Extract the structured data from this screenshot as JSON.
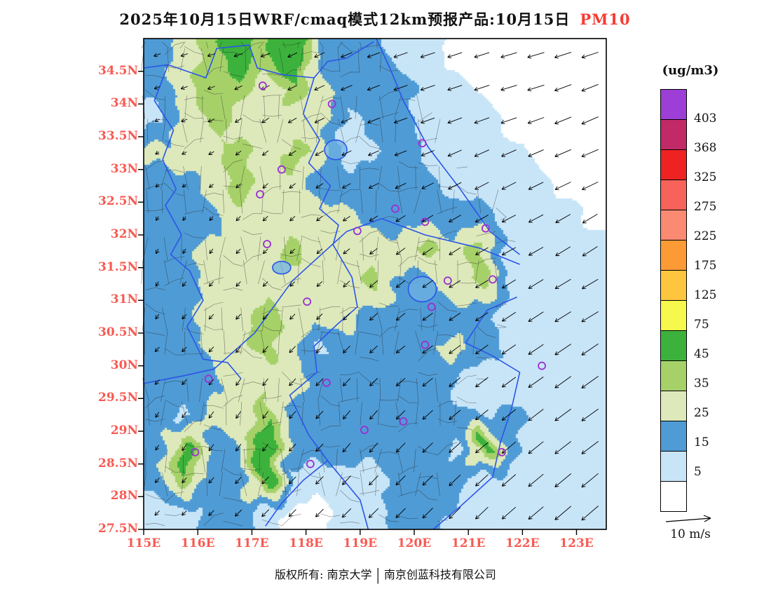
{
  "title": {
    "main": "2025年10月15日WRF/cmaq模式12km预报产品:10月15日",
    "pollutant": "PM10"
  },
  "footer": {
    "left": "版权所有: 南京大学",
    "divider": "|",
    "right": "南京创蓝科技有限公司"
  },
  "colors": {
    "axis_label": "#f85a52",
    "title_red": "#f83b32",
    "province_line": "#2b55e8",
    "county_line": "#222222",
    "marker": "#9a30d0",
    "frame": "#000000"
  },
  "axes": {
    "lat_ticks": [
      "34.5N",
      "34N",
      "33.5N",
      "33N",
      "32.5N",
      "32N",
      "31.5N",
      "31N",
      "30.5N",
      "30N",
      "29.5N",
      "29N",
      "28.5N",
      "28N",
      "27.5N"
    ],
    "lat_values": [
      34.5,
      34,
      33.5,
      33,
      32.5,
      32,
      31.5,
      31,
      30.5,
      30,
      29.5,
      29,
      28.5,
      28,
      27.5
    ],
    "lon_ticks": [
      "115E",
      "116E",
      "117E",
      "118E",
      "119E",
      "120E",
      "121E",
      "122E",
      "123E"
    ],
    "lon_values": [
      115,
      116,
      117,
      118,
      119,
      120,
      121,
      122,
      123
    ]
  },
  "legend": {
    "title": "(ug/m3)",
    "labels": [
      "403",
      "368",
      "325",
      "275",
      "225",
      "175",
      "125",
      "75",
      "45",
      "35",
      "25",
      "15",
      "5"
    ]
  },
  "wind_ref": {
    "label": "10 m/s",
    "speed": 10
  },
  "chart_data": {
    "type": "heatmap",
    "title": "2025年10月15日WRF/cmaq模式12km预报产品:10月15日 PM10",
    "units": "ug/m3",
    "lon_range": [
      115,
      123.55
    ],
    "lat_range": [
      27.5,
      35.0
    ],
    "levels": [
      5,
      15,
      25,
      35,
      45,
      75,
      125,
      175,
      225,
      275,
      325,
      368,
      403
    ],
    "level_colors": [
      "#ffffff",
      "#c8e5f8",
      "#4f9bd5",
      "#dde9bb",
      "#a6d169",
      "#3cb23c",
      "#f7f84c",
      "#fdc63e",
      "#fc9a36",
      "#fb8a72",
      "#f7625a",
      "#ee2222",
      "#c22a67",
      "#9d3fd6"
    ],
    "pm10_grid": {
      "lon_start": 115.25,
      "dlon": 0.5,
      "lat_start": 34.75,
      "dlat": -0.5,
      "values": [
        [
          20,
          30,
          40,
          55,
          40,
          65,
          20,
          20,
          20,
          10,
          10,
          2,
          2,
          2,
          2,
          2,
          2
        ],
        [
          20,
          30,
          42,
          40,
          30,
          40,
          30,
          20,
          20,
          20,
          10,
          10,
          2,
          2,
          2,
          2,
          2
        ],
        [
          10,
          30,
          40,
          30,
          30,
          30,
          30,
          12,
          20,
          20,
          10,
          10,
          10,
          2,
          2,
          2,
          2
        ],
        [
          28,
          30,
          30,
          40,
          30,
          40,
          30,
          10,
          12,
          22,
          10,
          10,
          10,
          10,
          2,
          2,
          2
        ],
        [
          20,
          20,
          30,
          40,
          30,
          30,
          20,
          20,
          20,
          20,
          20,
          12,
          10,
          10,
          10,
          2,
          2
        ],
        [
          20,
          20,
          20,
          30,
          30,
          30,
          30,
          30,
          20,
          22,
          20,
          20,
          20,
          10,
          10,
          10,
          2
        ],
        [
          20,
          20,
          30,
          30,
          30,
          40,
          30,
          30,
          30,
          30,
          40,
          30,
          40,
          12,
          10,
          10,
          10
        ],
        [
          20,
          20,
          30,
          30,
          30,
          30,
          30,
          30,
          40,
          20,
          20,
          30,
          40,
          12,
          10,
          10,
          10
        ],
        [
          20,
          20,
          30,
          30,
          40,
          30,
          30,
          30,
          20,
          22,
          20,
          20,
          20,
          10,
          10,
          10,
          10
        ],
        [
          22,
          20,
          30,
          30,
          40,
          30,
          12,
          20,
          20,
          22,
          20,
          30,
          20,
          12,
          10,
          10,
          10
        ],
        [
          22,
          20,
          20,
          30,
          30,
          30,
          20,
          20,
          20,
          20,
          20,
          12,
          10,
          10,
          10,
          10,
          10
        ],
        [
          20,
          12,
          30,
          30,
          40,
          20,
          20,
          22,
          20,
          22,
          20,
          20,
          12,
          20,
          10,
          10,
          10
        ],
        [
          20,
          55,
          20,
          20,
          60,
          20,
          20,
          20,
          20,
          20,
          20,
          12,
          55,
          20,
          10,
          10,
          10
        ],
        [
          20,
          40,
          20,
          20,
          60,
          12,
          10,
          10,
          10,
          20,
          22,
          20,
          10,
          10,
          10,
          10,
          10
        ],
        [
          10,
          10,
          20,
          20,
          12,
          2,
          2,
          10,
          10,
          20,
          22,
          12,
          10,
          10,
          10,
          10,
          10
        ]
      ]
    },
    "wind_grid": {
      "lon_start": 115,
      "dlon": 1,
      "lat_start": 35,
      "dlat": -1,
      "u": [
        [
          -3,
          -3,
          -4,
          -4,
          -5,
          -6,
          -6,
          -7,
          -7
        ],
        [
          -2,
          -3,
          -3,
          -4,
          -5,
          -6,
          -6,
          -7,
          -7
        ],
        [
          -1,
          -2,
          -2,
          -3,
          -4,
          -5,
          -6,
          -6,
          -7
        ],
        [
          -1,
          -1,
          -2,
          -2,
          -3,
          -4,
          -5,
          -6,
          -6
        ],
        [
          -1,
          -2,
          -2,
          -2,
          -3,
          -4,
          -5,
          -6,
          -7
        ],
        [
          -2,
          -2,
          -2,
          -3,
          -3,
          -4,
          -5,
          -6,
          -7
        ],
        [
          -1,
          -2,
          -2,
          -3,
          -3,
          -4,
          -5,
          -6,
          -7
        ],
        [
          -2,
          -2,
          -3,
          -3,
          -4,
          -4,
          -5,
          -6,
          -7
        ]
      ],
      "v": [
        [
          -1,
          -1,
          -1,
          -2,
          -2,
          -2,
          -2,
          -2,
          -2
        ],
        [
          -1,
          -1,
          -2,
          -2,
          -2,
          -2,
          -2,
          -2,
          -3
        ],
        [
          -1,
          -1,
          -2,
          -2,
          -2,
          -2,
          -3,
          -3,
          -3
        ],
        [
          -2,
          -2,
          -2,
          -2,
          -2,
          -3,
          -3,
          -3,
          -4
        ],
        [
          -2,
          -2,
          -2,
          -2,
          -3,
          -3,
          -3,
          -4,
          -4
        ],
        [
          -2,
          -2,
          -3,
          -3,
          -3,
          -3,
          -4,
          -4,
          -5
        ],
        [
          -2,
          -3,
          -3,
          -3,
          -4,
          -4,
          -4,
          -5,
          -5
        ],
        [
          -2,
          -2,
          -3,
          -3,
          -4,
          -4,
          -5,
          -5,
          -6
        ]
      ]
    },
    "stations": [
      [
        117.2,
        34.28
      ],
      [
        118.48,
        34.0
      ],
      [
        120.15,
        33.4
      ],
      [
        117.55,
        33.0
      ],
      [
        117.15,
        32.62
      ],
      [
        119.65,
        32.4
      ],
      [
        118.95,
        32.06
      ],
      [
        120.2,
        32.2
      ],
      [
        121.32,
        32.1
      ],
      [
        117.28,
        31.86
      ],
      [
        121.45,
        31.32
      ],
      [
        120.62,
        31.3
      ],
      [
        118.02,
        30.98
      ],
      [
        120.32,
        30.9
      ],
      [
        120.2,
        30.32
      ],
      [
        116.2,
        29.8
      ],
      [
        118.38,
        29.74
      ],
      [
        119.08,
        29.02
      ],
      [
        119.8,
        29.15
      ],
      [
        118.08,
        28.5
      ],
      [
        121.62,
        28.68
      ],
      [
        122.36,
        30.0
      ],
      [
        115.95,
        28.68
      ]
    ]
  }
}
